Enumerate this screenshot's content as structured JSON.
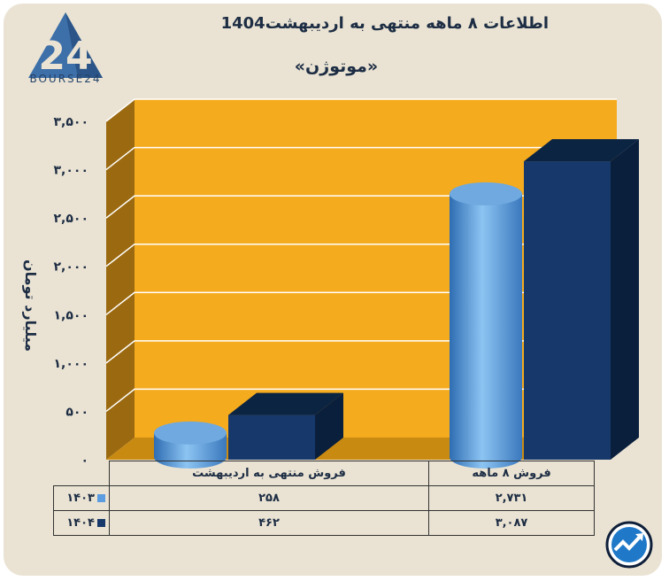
{
  "title": "اطلاعات ۸ ماهه منتهی به اردیبهشت1404",
  "subtitle": "«موتوژن»",
  "logo_text": "BOURSE24",
  "colors": {
    "series_1403": "#5b9de0",
    "series_1404": "#16386a",
    "wall": "#f5ab1e",
    "card": "#eae3d3"
  },
  "chart_data": {
    "type": "bar",
    "title": "اطلاعات ۸ ماهه منتهی به اردیبهشت1404",
    "subtitle": "«موتوژن»",
    "ylabel": "میلیارد تومان",
    "ylim": [
      0,
      3500
    ],
    "yticks": [
      "۳,۵۰۰",
      "۳,۰۰۰",
      "۲,۵۰۰",
      "۲,۰۰۰",
      "۱,۵۰۰",
      "۱,۰۰۰",
      "۵۰۰",
      "۰"
    ],
    "categories": [
      "فروش منتهی به  اردیبهشت",
      "فروش ۸  ماهه"
    ],
    "series": [
      {
        "name": "۱۴۰۳",
        "values": [
          258,
          2731
        ],
        "labels": [
          "۲۵۸",
          "۲,۷۳۱"
        ]
      },
      {
        "name": "۱۴۰۴",
        "values": [
          462,
          3087
        ],
        "labels": [
          "۴۶۲",
          "۳,۰۸۷"
        ]
      }
    ],
    "legend": "table-left",
    "grid": true
  }
}
